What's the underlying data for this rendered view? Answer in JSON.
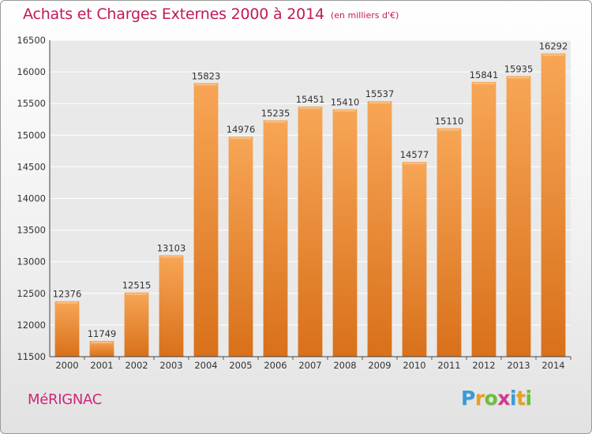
{
  "header": {
    "title": "Achats et Charges Externes 2000 à 2014",
    "subtitle": "(en milliers d'€)"
  },
  "footer": {
    "city": "MéRIGNAC",
    "logo_letters": [
      "P",
      "r",
      "o",
      "x",
      "i",
      "t",
      "i"
    ],
    "logo_colors": [
      "#3a9ad9",
      "#e8a020",
      "#6cbf3a",
      "#d23a8a",
      "#3a9ad9",
      "#e8a020",
      "#6cbf3a"
    ]
  },
  "chart_data": {
    "type": "bar",
    "title": "Achats et Charges Externes 2000 à 2014",
    "subtitle": "(en milliers d'€)",
    "categories": [
      "2000",
      "2001",
      "2002",
      "2003",
      "2004",
      "2005",
      "2006",
      "2007",
      "2008",
      "2009",
      "2010",
      "2011",
      "2012",
      "2013",
      "2014"
    ],
    "values": [
      12376,
      11749,
      12515,
      13103,
      15823,
      14976,
      15235,
      15451,
      15410,
      15537,
      14577,
      15110,
      15841,
      15935,
      16292
    ],
    "ylim": [
      11500,
      16500
    ],
    "yticks": [
      11500,
      12000,
      12500,
      13000,
      13500,
      14000,
      14500,
      15000,
      15500,
      16000,
      16500
    ],
    "grid": true,
    "bar_color": "#f08c30",
    "bar_color_light": "#f7a95a",
    "bar_color_dark": "#d9701a"
  }
}
